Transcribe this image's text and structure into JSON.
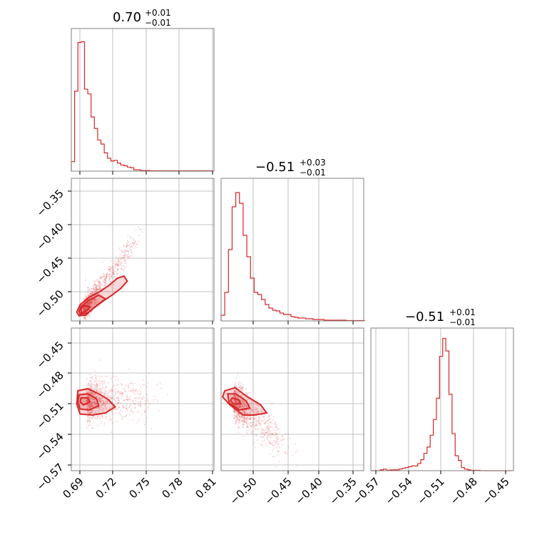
{
  "colors": {
    "series": "#d62728",
    "frame": "#808080",
    "grid": "#b0b0b0"
  },
  "chart_data": [
    {
      "type": "histogram",
      "title_value": "0.70",
      "title_upper": "+0.01",
      "title_lower": "−0.01",
      "xlim": [
        0.682,
        0.812
      ],
      "xticks": [
        0.69,
        0.72,
        0.75,
        0.78,
        0.81
      ],
      "xticklabels": [
        "0.69",
        "0.72",
        "0.75",
        "0.78",
        "0.81"
      ],
      "bin_edges": [
        0.682,
        0.685,
        0.688,
        0.691,
        0.694,
        0.697,
        0.7,
        0.703,
        0.706,
        0.709,
        0.712,
        0.715,
        0.718,
        0.721,
        0.724,
        0.727,
        0.73,
        0.733,
        0.736,
        0.739,
        0.742,
        0.745,
        0.748,
        0.751,
        0.754,
        0.757,
        0.76,
        0.763,
        0.766,
        0.769,
        0.772,
        0.775,
        0.778,
        0.781,
        0.784,
        0.787,
        0.79,
        0.793,
        0.796,
        0.799,
        0.802,
        0.805,
        0.808,
        0.811
      ],
      "counts": [
        14,
        118,
        190,
        191,
        121,
        114,
        80,
        63,
        46,
        40,
        27,
        19,
        15,
        16,
        12,
        9,
        8,
        6,
        5,
        2,
        2,
        1,
        1,
        1,
        0.5,
        0.5,
        0.5,
        0.5,
        0.5,
        0.5,
        0.5,
        0.5,
        0.5,
        0.5,
        0.5,
        0.5,
        0.5,
        0.5,
        0.5,
        0.5,
        0.5,
        0.5,
        0.5
      ],
      "ymax": 200
    },
    {
      "type": "histogram",
      "title_value": "−0.51",
      "title_upper": "+0.03",
      "title_lower": "−0.01",
      "xlim": [
        -0.532,
        -0.338
      ],
      "xticks": [
        -0.5,
        -0.45,
        -0.4,
        -0.35
      ],
      "xticklabels": [
        "−0.50",
        "−0.45",
        "−0.40",
        "−0.35"
      ],
      "bin_edges": [
        -0.532,
        -0.527,
        -0.522,
        -0.517,
        -0.512,
        -0.507,
        -0.502,
        -0.497,
        -0.492,
        -0.487,
        -0.482,
        -0.477,
        -0.472,
        -0.467,
        -0.462,
        -0.457,
        -0.452,
        -0.447,
        -0.442,
        -0.437,
        -0.432,
        -0.427,
        -0.422,
        -0.417,
        -0.412,
        -0.407,
        -0.402,
        -0.397,
        -0.392,
        -0.387,
        -0.382,
        -0.377,
        -0.372,
        -0.367,
        -0.362,
        -0.357,
        -0.352,
        -0.347,
        -0.342,
        -0.337
      ],
      "counts": [
        8,
        40,
        100,
        160,
        180,
        165,
        120,
        90,
        60,
        40,
        37,
        30,
        23,
        18,
        15,
        14,
        11,
        9,
        9,
        6,
        5,
        4,
        4,
        3,
        3,
        2,
        2,
        2,
        1,
        1,
        1,
        1,
        1,
        1,
        0.5,
        0.5,
        0.5,
        0.5,
        0.5
      ],
      "ymax": 190
    },
    {
      "type": "histogram",
      "title_value": "−0.51",
      "title_upper": "+0.01",
      "title_lower": "−0.01",
      "xlim": [
        -0.579,
        -0.442
      ],
      "xticks": [
        -0.57,
        -0.54,
        -0.51,
        -0.48,
        -0.45
      ],
      "xticklabels": [
        "−0.57",
        "−0.54",
        "−0.51",
        "−0.48",
        "−0.45"
      ],
      "bin_edges": [
        -0.579,
        -0.576,
        -0.573,
        -0.57,
        -0.567,
        -0.564,
        -0.561,
        -0.558,
        -0.555,
        -0.552,
        -0.549,
        -0.546,
        -0.543,
        -0.54,
        -0.537,
        -0.534,
        -0.531,
        -0.528,
        -0.525,
        -0.522,
        -0.519,
        -0.516,
        -0.513,
        -0.51,
        -0.507,
        -0.504,
        -0.501,
        -0.498,
        -0.495,
        -0.492,
        -0.489,
        -0.486,
        -0.483,
        -0.48,
        -0.477,
        -0.474,
        -0.471,
        -0.468,
        -0.465,
        -0.462,
        -0.459,
        -0.456,
        -0.453,
        -0.45,
        -0.447,
        -0.444
      ],
      "counts": [
        0,
        0,
        0,
        1,
        2,
        0.5,
        1,
        1,
        1,
        2,
        3,
        4,
        5,
        6,
        6,
        9,
        14,
        22,
        30,
        45,
        65,
        92,
        145,
        168,
        152,
        97,
        47,
        19,
        13,
        4,
        2,
        1,
        0.5,
        0.5,
        0.5,
        0,
        0,
        0,
        0,
        0,
        0,
        0,
        0,
        0,
        0
      ],
      "ymax": 172
    },
    {
      "type": "scatter",
      "xlim": [
        0.682,
        0.812
      ],
      "ylim": [
        -0.532,
        -0.338
      ],
      "yticks": [
        -0.35,
        -0.4,
        -0.45,
        -0.5
      ],
      "yticklabels": [
        "−0.35",
        "−0.40",
        "−0.45",
        "−0.50"
      ],
      "center": [
        0.693,
        -0.518
      ],
      "spread": [
        0.008,
        0.008
      ],
      "slope": 2.0,
      "contours": [
        [
          [
            0.689,
            -0.525
          ],
          [
            0.695,
            -0.524
          ],
          [
            0.703,
            -0.514
          ],
          [
            0.711,
            -0.505
          ],
          [
            0.719,
            -0.497
          ],
          [
            0.727,
            -0.488
          ],
          [
            0.733,
            -0.478
          ],
          [
            0.73,
            -0.471
          ],
          [
            0.724,
            -0.474
          ],
          [
            0.716,
            -0.484
          ],
          [
            0.707,
            -0.493
          ],
          [
            0.698,
            -0.5
          ],
          [
            0.69,
            -0.51
          ],
          [
            0.687,
            -0.52
          ]
        ],
        [
          [
            0.69,
            -0.523
          ],
          [
            0.697,
            -0.521
          ],
          [
            0.705,
            -0.511
          ],
          [
            0.713,
            -0.502
          ],
          [
            0.707,
            -0.497
          ],
          [
            0.698,
            -0.504
          ],
          [
            0.691,
            -0.512
          ],
          [
            0.689,
            -0.519
          ]
        ],
        [
          [
            0.691,
            -0.521
          ],
          [
            0.696,
            -0.518
          ],
          [
            0.699,
            -0.513
          ],
          [
            0.694,
            -0.511
          ],
          [
            0.691,
            -0.515
          ]
        ]
      ]
    },
    {
      "type": "scatter",
      "xlim": [
        0.682,
        0.812
      ],
      "ylim": [
        -0.578,
        -0.437
      ],
      "yticks": [
        -0.45,
        -0.48,
        -0.51,
        -0.54,
        -0.57
      ],
      "yticklabels": [
        "−0.45",
        "−0.48",
        "−0.51",
        "−0.54",
        "−0.57"
      ],
      "center": [
        0.696,
        -0.509
      ],
      "spread": [
        0.01,
        0.01
      ],
      "slope": 0,
      "contours": [
        [
          [
            0.688,
            -0.499
          ],
          [
            0.697,
            -0.497
          ],
          [
            0.707,
            -0.502
          ],
          [
            0.716,
            -0.508
          ],
          [
            0.722,
            -0.515
          ],
          [
            0.713,
            -0.521
          ],
          [
            0.701,
            -0.523
          ],
          [
            0.69,
            -0.522
          ],
          [
            0.687,
            -0.512
          ]
        ],
        [
          [
            0.689,
            -0.503
          ],
          [
            0.697,
            -0.502
          ],
          [
            0.705,
            -0.507
          ],
          [
            0.707,
            -0.514
          ],
          [
            0.698,
            -0.518
          ],
          [
            0.69,
            -0.517
          ],
          [
            0.688,
            -0.51
          ]
        ],
        [
          [
            0.691,
            -0.506
          ],
          [
            0.697,
            -0.506
          ],
          [
            0.699,
            -0.51
          ],
          [
            0.693,
            -0.513
          ],
          [
            0.69,
            -0.51
          ]
        ]
      ]
    },
    {
      "type": "scatter",
      "xlim": [
        -0.532,
        -0.338
      ],
      "ylim": [
        -0.578,
        -0.437
      ],
      "center": [
        -0.515,
        -0.509
      ],
      "spread": [
        0.012,
        0.01
      ],
      "slope": -0.6,
      "contours": [
        [
          [
            -0.527,
            -0.499
          ],
          [
            -0.513,
            -0.496
          ],
          [
            -0.496,
            -0.505
          ],
          [
            -0.478,
            -0.513
          ],
          [
            -0.47,
            -0.521
          ],
          [
            -0.487,
            -0.523
          ],
          [
            -0.502,
            -0.523
          ],
          [
            -0.52,
            -0.513
          ],
          [
            -0.53,
            -0.505
          ]
        ],
        [
          [
            -0.523,
            -0.502
          ],
          [
            -0.512,
            -0.502
          ],
          [
            -0.498,
            -0.509
          ],
          [
            -0.493,
            -0.516
          ],
          [
            -0.507,
            -0.518
          ],
          [
            -0.521,
            -0.511
          ]
        ],
        [
          [
            -0.517,
            -0.506
          ],
          [
            -0.508,
            -0.508
          ],
          [
            -0.505,
            -0.512
          ],
          [
            -0.515,
            -0.512
          ],
          [
            -0.519,
            -0.509
          ]
        ]
      ]
    }
  ]
}
